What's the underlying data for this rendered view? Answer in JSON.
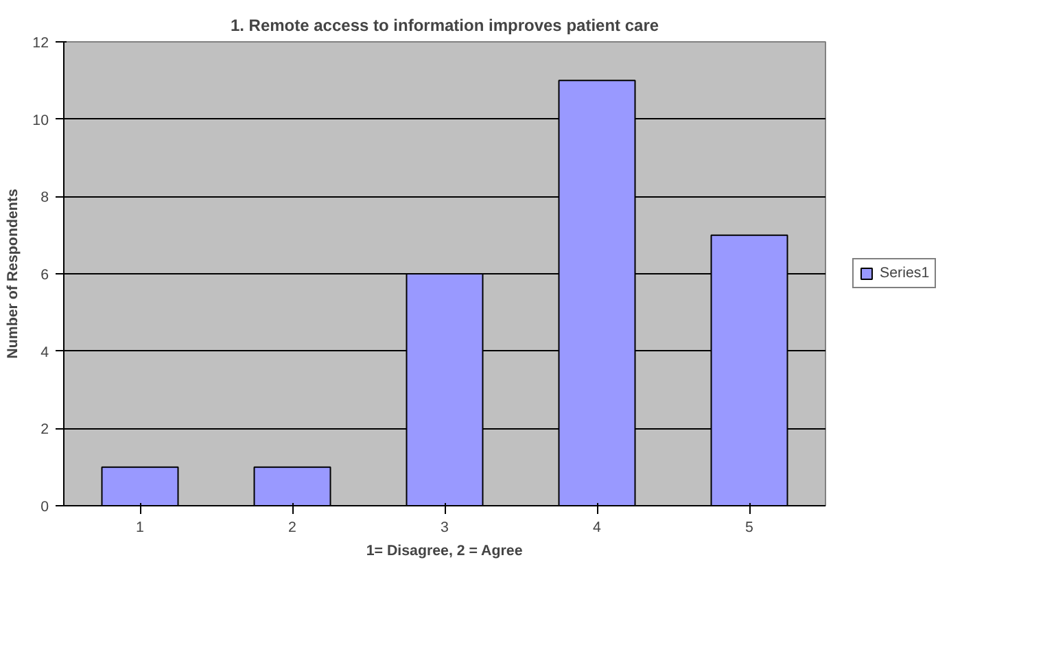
{
  "chart_data": {
    "type": "bar",
    "title": "1. Remote access to information improves patient care",
    "xlabel": "1= Disagree, 2 = Agree",
    "ylabel": "Number of Respondents",
    "categories": [
      "1",
      "2",
      "3",
      "4",
      "5"
    ],
    "series": [
      {
        "name": "Series1",
        "color": "#9999ff",
        "values": [
          1,
          1,
          6,
          11,
          7
        ]
      }
    ],
    "ylim": [
      0,
      12
    ],
    "yticks": [
      0,
      2,
      4,
      6,
      8,
      10,
      12
    ],
    "grid": "y",
    "legend": "right"
  }
}
